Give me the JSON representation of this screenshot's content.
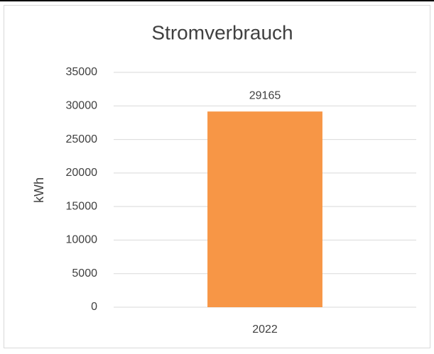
{
  "chart_data": {
    "type": "bar",
    "title": "Stromverbrauch",
    "y_label": "kWh",
    "categories": [
      "2022"
    ],
    "values": [
      29165
    ],
    "color": "#f79646",
    "ylim": [
      0,
      35000
    ],
    "yticks": [
      0,
      5000,
      10000,
      15000,
      20000,
      25000,
      30000,
      35000
    ],
    "grid": true
  }
}
